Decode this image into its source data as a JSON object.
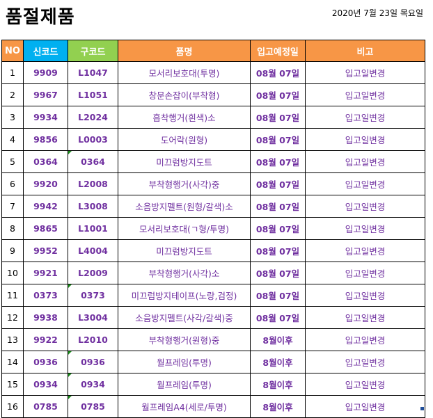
{
  "header": {
    "title": "품절제품",
    "date": "2020년 7월 23일 목요일"
  },
  "table": {
    "columns": [
      "NO",
      "신코드",
      "구코드",
      "품명",
      "입고예정일",
      "비고"
    ],
    "rows": [
      {
        "no": "1",
        "new_code": "9909",
        "old_code": "L1047",
        "name": "모서리보호대(투명)",
        "date": "08월 07일",
        "note": "입고일변경"
      },
      {
        "no": "2",
        "new_code": "9967",
        "old_code": "L1051",
        "name": "창문손잡이(부착형)",
        "date": "08월 07일",
        "note": "입고일변경"
      },
      {
        "no": "3",
        "new_code": "9934",
        "old_code": "L2024",
        "name": "흡착행거(흰색)소",
        "date": "08월 07일",
        "note": "입고일변경"
      },
      {
        "no": "4",
        "new_code": "9856",
        "old_code": "L0003",
        "name": "도어락(원형)",
        "date": "08월 07일",
        "note": "입고일변경"
      },
      {
        "no": "5",
        "new_code": "0364",
        "old_code": "0364",
        "name": "미끄럼방지도트",
        "date": "08월 07일",
        "note": "입고일변경"
      },
      {
        "no": "6",
        "new_code": "9920",
        "old_code": "L2008",
        "name": "부착형행거(사각)중",
        "date": "08월 07일",
        "note": "입고일변경"
      },
      {
        "no": "7",
        "new_code": "9942",
        "old_code": "L3008",
        "name": "소음방지펠트(원형/갈색)소",
        "date": "08월 07일",
        "note": "입고일변경"
      },
      {
        "no": "8",
        "new_code": "9865",
        "old_code": "L1001",
        "name": "모서리보호대(ㄱ형/투명)",
        "date": "08월 07일",
        "note": "입고일변경"
      },
      {
        "no": "9",
        "new_code": "9952",
        "old_code": "L4004",
        "name": "미끄럼방지도트",
        "date": "08월 07일",
        "note": "입고일변경"
      },
      {
        "no": "10",
        "new_code": "9921",
        "old_code": "L2009",
        "name": "부착형행거(사각)소",
        "date": "08월 07일",
        "note": "입고일변경"
      },
      {
        "no": "11",
        "new_code": "0373",
        "old_code": "0373",
        "name": "미끄럼방지테이프(노랑,검정)",
        "date": "08월 07일",
        "note": "입고일변경"
      },
      {
        "no": "12",
        "new_code": "9938",
        "old_code": "L3004",
        "name": "소음방지펠트(사각/갈색)중",
        "date": "08월 07일",
        "note": "입고일변경"
      },
      {
        "no": "13",
        "new_code": "9922",
        "old_code": "L2010",
        "name": "부착형행거(원형)중",
        "date": "8월이후",
        "note": "입고일변경"
      },
      {
        "no": "14",
        "new_code": "0936",
        "old_code": "0936",
        "name": "월프레임(투명)",
        "date": "8월이후",
        "note": "입고일변경"
      },
      {
        "no": "15",
        "new_code": "0934",
        "old_code": "0934",
        "name": "월프레임(투명)",
        "date": "8월이후",
        "note": "입고일변경"
      },
      {
        "no": "16",
        "new_code": "0785",
        "old_code": "0785",
        "name": "월프레임A4(세로/투명)",
        "date": "8월이후",
        "note": "입고일변경"
      }
    ]
  },
  "colors": {
    "header_orange": "#f79646",
    "header_blue": "#00b0f0",
    "header_green": "#92d050",
    "text_purple": "#7030a0"
  }
}
